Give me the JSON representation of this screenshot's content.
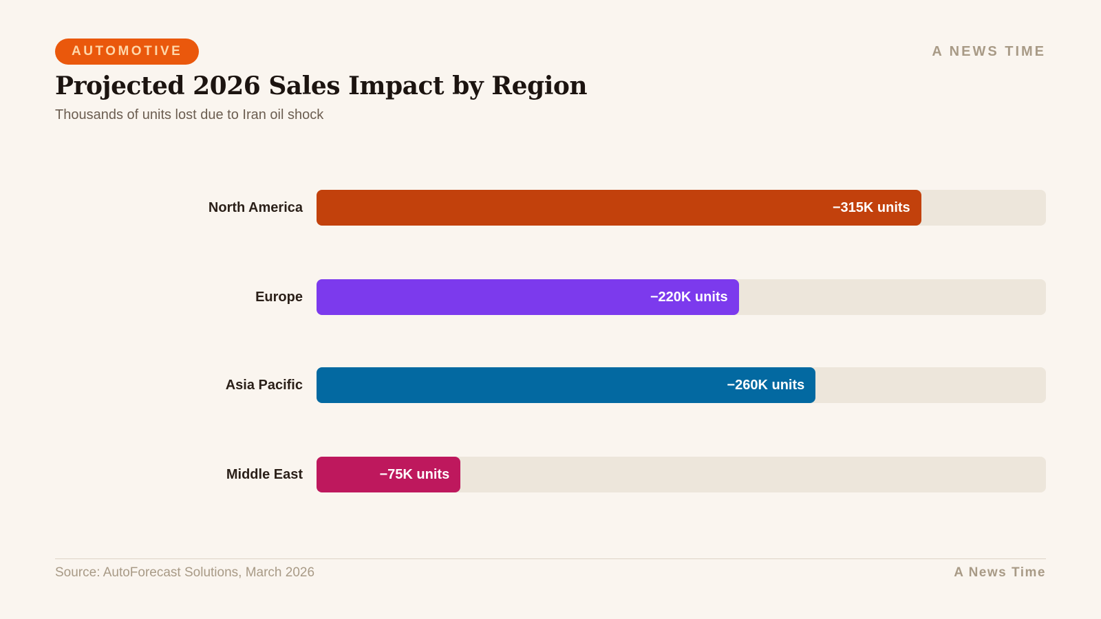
{
  "header": {
    "badge": "AUTOMOTIVE",
    "brand": "A NEWS TIME"
  },
  "chart_data": {
    "type": "bar",
    "orientation": "horizontal",
    "title": "Projected 2026 Sales Impact by Region",
    "subtitle": "Thousands of units lost due to Iran oil shock",
    "categories": [
      "North America",
      "Europe",
      "Asia Pacific",
      "Middle East"
    ],
    "values": [
      315,
      220,
      260,
      75
    ],
    "labels": [
      "−315K units",
      "−220K units",
      "−260K units",
      "−75K units"
    ],
    "colors": [
      "#c2410c",
      "#7c3aed",
      "#0369a1",
      "#be185d"
    ],
    "xlim": [
      0,
      380
    ],
    "grid": false
  },
  "footer": {
    "source": "Source: AutoForecast Solutions, March 2026",
    "brand": "A News Time"
  }
}
